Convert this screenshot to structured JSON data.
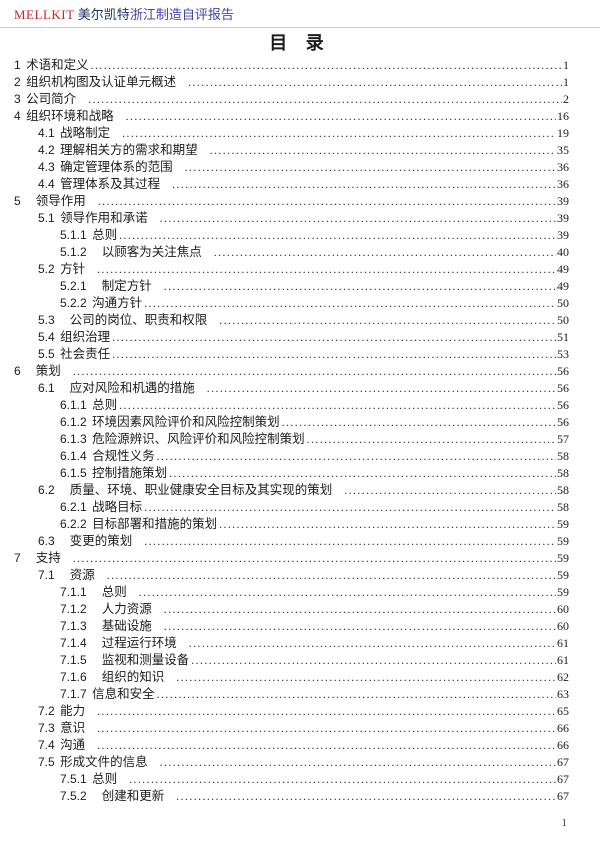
{
  "colors": {
    "brand_red": "#c3272b",
    "company_navy": "#24305e",
    "suffix_blue": "#4343a4",
    "rule_gray": "#c9c9c9",
    "text": "#1c1c1c"
  },
  "header": {
    "brand": "MELLKIT",
    "company": "美尔凯特",
    "suffix": "浙江制造自评报告"
  },
  "title": "目 录",
  "footer": {
    "page_number": "1"
  },
  "toc": {
    "entries": [
      {
        "n": "1",
        "t": "术语和定义",
        "p": "1",
        "lv": 1,
        "g": 0,
        "s": 0
      },
      {
        "n": "2",
        "t": "组织机构图及认证单元概述",
        "p": "1",
        "lv": 1,
        "g": 0,
        "s": 1
      },
      {
        "n": "3",
        "t": "公司简介",
        "p": "2",
        "lv": 1,
        "g": 0,
        "s": 1
      },
      {
        "n": "4",
        "t": "组织环境和战略",
        "p": "16",
        "lv": 1,
        "g": 0,
        "s": 1
      },
      {
        "n": "4.1",
        "t": "战略制定",
        "p": "19",
        "lv": 2,
        "g": 0,
        "s": 1
      },
      {
        "n": "4.2",
        "t": "理解相关方的需求和期望",
        "p": "35",
        "lv": 2,
        "g": 0,
        "s": 1
      },
      {
        "n": "4.3",
        "t": "确定管理体系的范围",
        "p": "36",
        "lv": 2,
        "g": 0,
        "s": 1
      },
      {
        "n": "4.4",
        "t": "管理体系及其过程",
        "p": "36",
        "lv": 2,
        "g": 0,
        "s": 1
      },
      {
        "n": "5",
        "t": "领导作用",
        "p": "39",
        "lv": 1,
        "g": 1,
        "s": 1
      },
      {
        "n": "5.1",
        "t": "领导作用和承诺",
        "p": "39",
        "lv": 2,
        "g": 0,
        "s": 1
      },
      {
        "n": "5.1.1",
        "t": "总则",
        "p": "39",
        "lv": 3,
        "g": 0,
        "s": 0
      },
      {
        "n": "5.1.2",
        "t": "以顾客为关注焦点",
        "p": "40",
        "lv": 3,
        "g": 1,
        "s": 1
      },
      {
        "n": "5.2",
        "t": "方针",
        "p": "49",
        "lv": 2,
        "g": 0,
        "s": 1
      },
      {
        "n": "5.2.1",
        "t": "制定方针",
        "p": "49",
        "lv": 3,
        "g": 1,
        "s": 1
      },
      {
        "n": "5.2.2",
        "t": "沟通方针",
        "p": "50",
        "lv": 3,
        "g": 0,
        "s": 0
      },
      {
        "n": "5.3",
        "t": "公司的岗位、职责和权限",
        "p": "50",
        "lv": 2,
        "g": 1,
        "s": 1
      },
      {
        "n": "5.4",
        "t": "组织治理",
        "p": "51",
        "lv": 2,
        "g": 0,
        "s": 0
      },
      {
        "n": "5.5",
        "t": "社会责任",
        "p": "53",
        "lv": 2,
        "g": 0,
        "s": 0
      },
      {
        "n": "6",
        "t": "策划",
        "p": "56",
        "lv": 1,
        "g": 1,
        "s": 1
      },
      {
        "n": "6.1",
        "t": "应对风险和机遇的措施",
        "p": "56",
        "lv": 2,
        "g": 1,
        "s": 1
      },
      {
        "n": "6.1.1",
        "t": "总则",
        "p": "56",
        "lv": 3,
        "g": 0,
        "s": 0
      },
      {
        "n": "6.1.2",
        "t": "环境因素风险评价和风险控制策划",
        "p": "56",
        "lv": 3,
        "g": 0,
        "s": 0
      },
      {
        "n": "6.1.3",
        "t": "危险源辨识、风险评价和风险控制策划",
        "p": "57",
        "lv": 3,
        "g": 0,
        "s": 0
      },
      {
        "n": "6.1.4",
        "t": "合规性义务",
        "p": "58",
        "lv": 3,
        "g": 0,
        "s": 0
      },
      {
        "n": "6.1.5",
        "t": "控制措施策划",
        "p": "58",
        "lv": 3,
        "g": 0,
        "s": 0
      },
      {
        "n": "6.2",
        "t": "质量、环境、职业健康安全目标及其实现的策划",
        "p": "58",
        "lv": 2,
        "g": 1,
        "s": 1
      },
      {
        "n": "6.2.1",
        "t": "战略目标",
        "p": "58",
        "lv": 3,
        "g": 0,
        "s": 0
      },
      {
        "n": "6.2.2",
        "t": "目标部署和措施的策划",
        "p": "59",
        "lv": 3,
        "g": 0,
        "s": 0
      },
      {
        "n": "6.3",
        "t": "变更的策划",
        "p": "59",
        "lv": 2,
        "g": 1,
        "s": 1
      },
      {
        "n": "7",
        "t": "支持",
        "p": "59",
        "lv": 1,
        "g": 1,
        "s": 1
      },
      {
        "n": "7.1",
        "t": "资源",
        "p": "59",
        "lv": 2,
        "g": 1,
        "s": 1
      },
      {
        "n": "7.1.1",
        "t": "总则",
        "p": "59",
        "lv": 3,
        "g": 1,
        "s": 1
      },
      {
        "n": "7.1.2",
        "t": "人力资源",
        "p": "60",
        "lv": 3,
        "g": 1,
        "s": 1
      },
      {
        "n": "7.1.3",
        "t": "基础设施",
        "p": "60",
        "lv": 3,
        "g": 1,
        "s": 1
      },
      {
        "n": "7.1.4",
        "t": "过程运行环境",
        "p": "61",
        "lv": 3,
        "g": 1,
        "s": 1
      },
      {
        "n": "7.1.5",
        "t": "监视和测量设备",
        "p": "61",
        "lv": 3,
        "g": 1,
        "s": 0
      },
      {
        "n": "7.1.6",
        "t": "组织的知识",
        "p": "62",
        "lv": 3,
        "g": 1,
        "s": 1
      },
      {
        "n": "7.1.7",
        "t": "信息和安全",
        "p": "63",
        "lv": 3,
        "g": 0,
        "s": 0
      },
      {
        "n": "7.2",
        "t": "能力",
        "p": "65",
        "lv": 2,
        "g": 0,
        "s": 1
      },
      {
        "n": "7.3",
        "t": "意识",
        "p": "66",
        "lv": 2,
        "g": 0,
        "s": 1
      },
      {
        "n": "7.4",
        "t": "沟通",
        "p": "66",
        "lv": 2,
        "g": 0,
        "s": 1
      },
      {
        "n": "7.5",
        "t": "形成文件的信息",
        "p": "67",
        "lv": 2,
        "g": 0,
        "s": 1
      },
      {
        "n": "7.5.1",
        "t": "总则",
        "p": "67",
        "lv": 3,
        "g": 0,
        "s": 1
      },
      {
        "n": "7.5.2",
        "t": "创建和更新",
        "p": "67",
        "lv": 3,
        "g": 1,
        "s": 1
      }
    ]
  }
}
